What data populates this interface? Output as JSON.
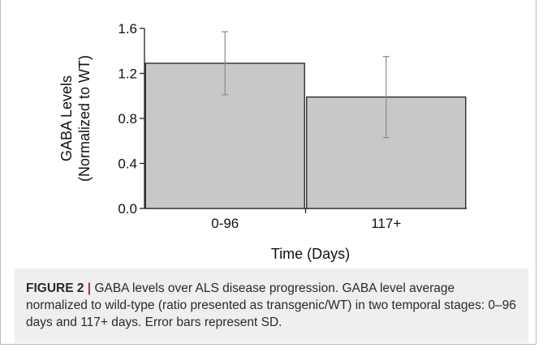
{
  "chart_data": {
    "type": "bar",
    "categories": [
      "0-96",
      "117+"
    ],
    "values": [
      1.29,
      0.99
    ],
    "error": [
      0.28,
      0.36
    ],
    "ylim": [
      0.0,
      1.6
    ],
    "yticks": [
      "0.0",
      "0.4",
      "0.8",
      "1.2",
      "1.6"
    ],
    "ylabel_line1": "GABA Levels",
    "ylabel_line2": "(Normalized to WT)",
    "xlabel": "Time (Days)",
    "bar_color": "#c8c8c8",
    "grid": false
  },
  "caption": {
    "label": "FIGURE 2",
    "separator": "|",
    "text": "GABA levels over ALS disease progression. GABA level average normalized to wild-type (ratio presented as transgenic/WT) in two temporal stages: 0–96 days and 117+ days. Error bars represent SD."
  }
}
